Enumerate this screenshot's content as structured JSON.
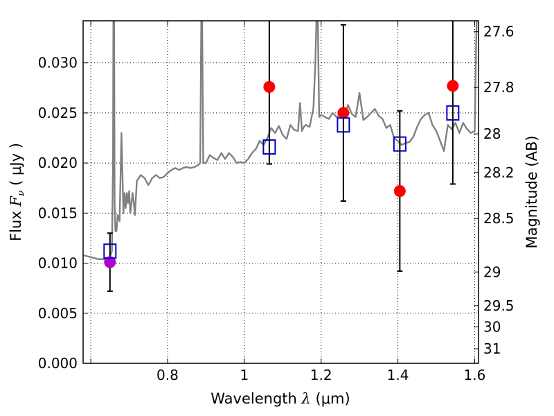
{
  "chart_data": {
    "type": "scatter",
    "xlabel": {
      "prefix": "Wavelength  ",
      "lambda": "λ",
      "unit": " (μm)"
    },
    "ylabel": {
      "prefix": "Flux  ",
      "var": "F",
      "sub": "ν",
      "unit": "  ( μJy )"
    },
    "y2label": "Magnitude (AB)",
    "xlim": [
      0.58,
      1.61
    ],
    "ylim": [
      0.0,
      0.0342
    ],
    "grid": true,
    "x_ticks": [
      {
        "value": 0.6,
        "label": ""
      },
      {
        "value": 0.8,
        "label": "0.8"
      },
      {
        "value": 1.0,
        "label": "1"
      },
      {
        "value": 1.2,
        "label": "1.2"
      },
      {
        "value": 1.4,
        "label": "1.4"
      },
      {
        "value": 1.6,
        "label": "1.6"
      }
    ],
    "y_ticks": [
      {
        "value": 0.0,
        "label": "0.000"
      },
      {
        "value": 0.005,
        "label": "0.005"
      },
      {
        "value": 0.01,
        "label": "0.010"
      },
      {
        "value": 0.015,
        "label": "0.015"
      },
      {
        "value": 0.02,
        "label": "0.020"
      },
      {
        "value": 0.025,
        "label": "0.025"
      },
      {
        "value": 0.03,
        "label": "0.030"
      }
    ],
    "y2_ticks": [
      {
        "mag": 27.6,
        "label": "27.6"
      },
      {
        "mag": 27.8,
        "label": "27.8"
      },
      {
        "mag": 28.0,
        "label": "28"
      },
      {
        "mag": 28.2,
        "label": "28.2"
      },
      {
        "mag": 28.5,
        "label": "28.5"
      },
      {
        "mag": 29.0,
        "label": "29"
      },
      {
        "mag": 29.5,
        "label": "29.5"
      },
      {
        "mag": 30.0,
        "label": "30"
      },
      {
        "mag": 31.0,
        "label": "31"
      }
    ],
    "spectrum": {
      "color": "#808080",
      "x": [
        0.58,
        0.6,
        0.62,
        0.64,
        0.65,
        0.655,
        0.658,
        0.66,
        0.662,
        0.664,
        0.667,
        0.67,
        0.675,
        0.68,
        0.685,
        0.688,
        0.691,
        0.694,
        0.697,
        0.7,
        0.703,
        0.706,
        0.709,
        0.712,
        0.715,
        0.72,
        0.73,
        0.74,
        0.75,
        0.76,
        0.77,
        0.78,
        0.79,
        0.8,
        0.81,
        0.82,
        0.83,
        0.84,
        0.85,
        0.86,
        0.87,
        0.88,
        0.885,
        0.889,
        0.893,
        0.9,
        0.91,
        0.92,
        0.93,
        0.94,
        0.95,
        0.96,
        0.97,
        0.98,
        0.99,
        1.0,
        1.01,
        1.02,
        1.03,
        1.04,
        1.05,
        1.06,
        1.07,
        1.08,
        1.09,
        1.1,
        1.11,
        1.12,
        1.13,
        1.14,
        1.145,
        1.15,
        1.155,
        1.16,
        1.17,
        1.18,
        1.185,
        1.19,
        1.195,
        1.2,
        1.21,
        1.22,
        1.23,
        1.24,
        1.25,
        1.26,
        1.27,
        1.28,
        1.29,
        1.3,
        1.31,
        1.32,
        1.33,
        1.34,
        1.35,
        1.36,
        1.37,
        1.38,
        1.39,
        1.4,
        1.41,
        1.42,
        1.43,
        1.44,
        1.45,
        1.46,
        1.47,
        1.48,
        1.49,
        1.5,
        1.51,
        1.52,
        1.53,
        1.54,
        1.55,
        1.56,
        1.57,
        1.58,
        1.59,
        1.6,
        1.603,
        1.606,
        1.61
      ],
      "y": [
        0.0108,
        0.0106,
        0.0104,
        0.0104,
        0.0106,
        0.0112,
        0.02,
        0.05,
        0.016,
        0.0132,
        0.0132,
        0.0148,
        0.0142,
        0.023,
        0.015,
        0.017,
        0.0155,
        0.017,
        0.016,
        0.0172,
        0.015,
        0.016,
        0.017,
        0.016,
        0.0148,
        0.0182,
        0.0188,
        0.0185,
        0.0178,
        0.0185,
        0.0188,
        0.0185,
        0.0186,
        0.019,
        0.0193,
        0.0195,
        0.0193,
        0.0195,
        0.0196,
        0.0195,
        0.0196,
        0.0198,
        0.02,
        0.04,
        0.02,
        0.02,
        0.0208,
        0.0205,
        0.0203,
        0.021,
        0.0204,
        0.021,
        0.0206,
        0.02,
        0.0201,
        0.02,
        0.0204,
        0.021,
        0.0214,
        0.0222,
        0.0218,
        0.0225,
        0.0235,
        0.023,
        0.0237,
        0.0228,
        0.0224,
        0.0238,
        0.0233,
        0.0232,
        0.026,
        0.0232,
        0.0236,
        0.0238,
        0.0236,
        0.0255,
        0.03,
        0.038,
        0.0246,
        0.0248,
        0.0246,
        0.0244,
        0.025,
        0.0246,
        0.0248,
        0.0245,
        0.0258,
        0.0249,
        0.0246,
        0.027,
        0.0243,
        0.0246,
        0.025,
        0.0254,
        0.0247,
        0.0244,
        0.0235,
        0.0238,
        0.0225,
        0.0222,
        0.0218,
        0.022,
        0.0221,
        0.0226,
        0.0236,
        0.0244,
        0.0248,
        0.025,
        0.0238,
        0.0232,
        0.0222,
        0.0212,
        0.0238,
        0.0234,
        0.024,
        0.023,
        0.024,
        0.0234,
        0.023,
        0.0232,
        0.03,
        0.036,
        0.04
      ]
    },
    "observed_points": {
      "color": "#ff0000",
      "highlight_color": "#b000d0",
      "x": [
        0.65,
        1.065,
        1.258,
        1.405,
        1.543
      ],
      "y": [
        0.0101,
        0.0276,
        0.025,
        0.0172,
        0.0277
      ],
      "ylow": [
        0.0072,
        0.0199,
        0.0162,
        0.0092,
        0.0179
      ],
      "yhigh": [
        0.013,
        0.04,
        0.0338,
        0.0252,
        0.04
      ]
    },
    "model_points": {
      "color": "#0000c8",
      "x": [
        0.65,
        1.065,
        1.258,
        1.405,
        1.543
      ],
      "y": [
        0.0112,
        0.0216,
        0.0238,
        0.0219,
        0.025
      ]
    }
  }
}
